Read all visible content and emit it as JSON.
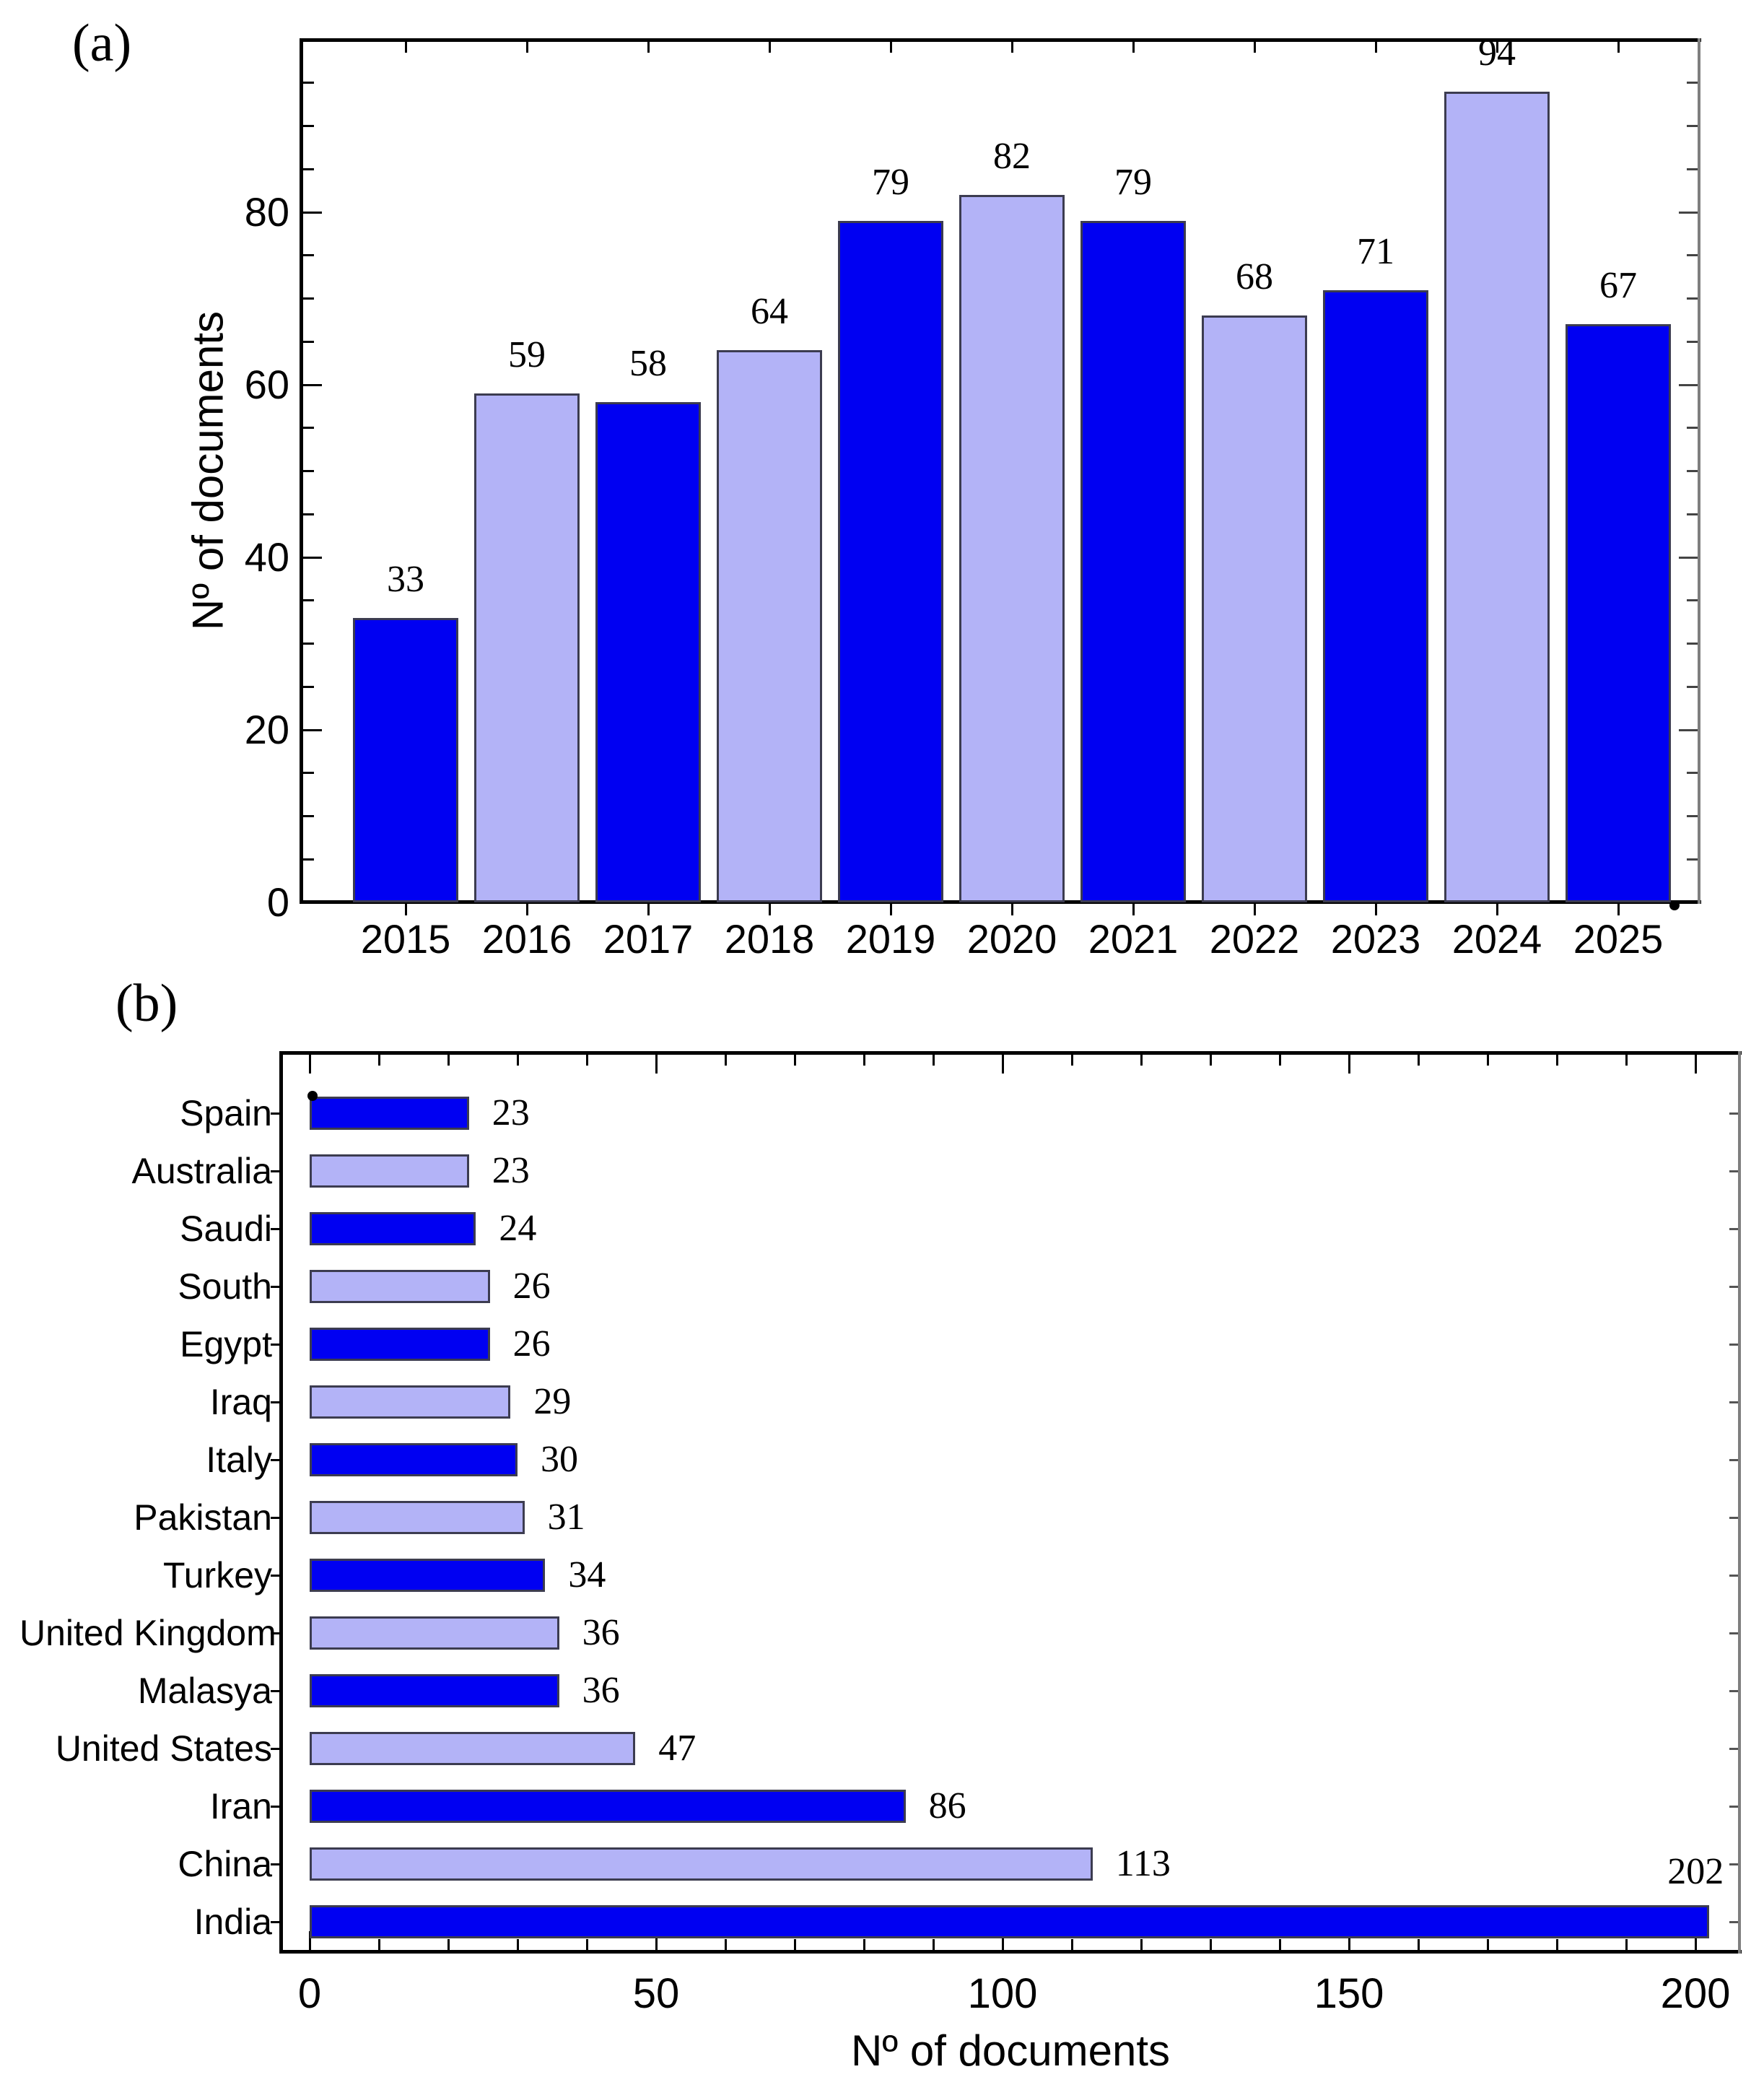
{
  "colors": {
    "bar_dark": "#0000f2",
    "bar_light": "#b3b3f7",
    "bar_border": "#3c3c50",
    "frame": "#000000",
    "frame_right": "#7f7f7f",
    "text": "#000000",
    "background": "#ffffff"
  },
  "panel_a": {
    "label": "(a)",
    "y_axis_title": "Nº of documents"
  },
  "panel_b": {
    "label": "(b)",
    "x_axis_title": "Nº of documents"
  },
  "chart_data": [
    {
      "type": "bar",
      "panel": "a",
      "orientation": "vertical",
      "title": "",
      "xlabel": "",
      "ylabel": "Nº of documents",
      "categories": [
        "2015",
        "2016",
        "2017",
        "2018",
        "2019",
        "2020",
        "2021",
        "2022",
        "2023",
        "2024",
        "2025"
      ],
      "values": [
        33,
        59,
        58,
        64,
        79,
        82,
        79,
        68,
        71,
        94,
        67
      ],
      "value_labels_shown": true,
      "bar_color_pattern": [
        "dark",
        "light"
      ],
      "ylim": [
        0,
        100
      ],
      "yticks": [
        0,
        20,
        40,
        60,
        80
      ],
      "minor_tick_step": 5,
      "grid": false,
      "legend": "none"
    },
    {
      "type": "bar",
      "panel": "b",
      "orientation": "horizontal",
      "title": "",
      "xlabel": "Nº of documents",
      "ylabel": "",
      "categories": [
        "Spain",
        "Australia",
        "Saudi",
        "South",
        "Egypt",
        "Iraq",
        "Italy",
        "Pakistan",
        "Turkey",
        "United Kingdom",
        "Malasya",
        "United States",
        "Iran",
        "China",
        "India"
      ],
      "values": [
        23,
        23,
        24,
        26,
        26,
        29,
        30,
        31,
        34,
        36,
        36,
        47,
        86,
        113,
        202
      ],
      "value_labels_shown": true,
      "bar_color_pattern": [
        "dark",
        "light"
      ],
      "xlim": [
        0,
        206
      ],
      "xticks": [
        0,
        50,
        100,
        150,
        200
      ],
      "minor_tick_step": 10,
      "grid": false,
      "legend": "none"
    }
  ]
}
